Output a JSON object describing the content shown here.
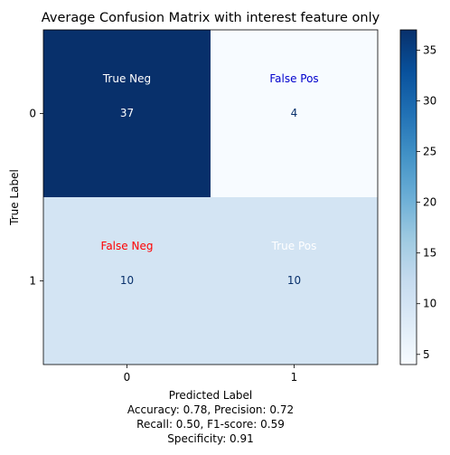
{
  "chart_data": {
    "type": "heatmap",
    "title": "Average Confusion Matrix with interest feature only",
    "xlabel": "Predicted Label",
    "ylabel": "True Label",
    "x_categories": [
      "0",
      "1"
    ],
    "y_categories": [
      "0",
      "1"
    ],
    "values": [
      [
        37,
        4
      ],
      [
        10,
        10
      ]
    ],
    "cell_labels": [
      [
        "True Neg",
        "False Pos"
      ],
      [
        "False Neg",
        "True Pos"
      ]
    ],
    "cell_label_colors": [
      [
        "#ffffff",
        "#0000cd"
      ],
      [
        "#ff0000",
        "#ffffff"
      ]
    ],
    "value_colors": [
      [
        "#ffffff",
        "#08306b"
      ],
      [
        "#08306b",
        "#08306b"
      ]
    ],
    "cell_colors": [
      [
        "#08306b",
        "#f7fbff"
      ],
      [
        "#d3e4f3",
        "#d3e4f3"
      ]
    ],
    "colorbar": {
      "min": 4,
      "max": 37,
      "ticks": [
        5,
        10,
        15,
        20,
        25,
        30,
        35
      ],
      "colormap": "Blues"
    },
    "metrics": [
      "Accuracy: 0.78, Precision: 0.72",
      "Recall: 0.50, F1-score: 0.59",
      "Specificity: 0.91"
    ]
  }
}
